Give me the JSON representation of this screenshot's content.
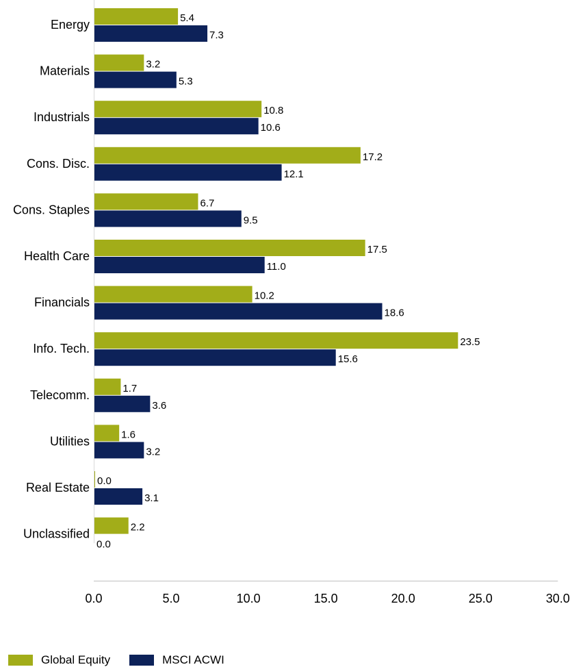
{
  "chart_data": {
    "type": "bar",
    "orientation": "horizontal",
    "categories": [
      "Energy",
      "Materials",
      "Industrials",
      "Cons. Disc.",
      "Cons. Staples",
      "Health Care",
      "Financials",
      "Info. Tech.",
      "Telecomm.",
      "Utilities",
      "Real Estate",
      "Unclassified"
    ],
    "series": [
      {
        "name": "Global Equity",
        "color": "#A2AD19",
        "values": [
          5.4,
          3.2,
          10.8,
          17.2,
          6.7,
          17.5,
          10.2,
          23.5,
          1.7,
          1.6,
          0.0,
          2.2
        ],
        "labels": [
          "5.4",
          "3.2",
          "10.8",
          "17.2",
          "6.7",
          "17.5",
          "10.2",
          "23.5",
          "1.7",
          "1.6",
          "0.0",
          "2.2"
        ]
      },
      {
        "name": "MSCI ACWI",
        "color": "#0D2259",
        "values": [
          7.3,
          5.3,
          10.6,
          12.1,
          9.5,
          11.0,
          18.6,
          15.6,
          3.6,
          3.2,
          3.1,
          0.0
        ],
        "labels": [
          "7.3",
          "5.3",
          "10.6",
          "12.1",
          "9.5",
          "11.0",
          "18.6",
          "15.6",
          "3.6",
          "3.2",
          "3.1",
          "0.0"
        ]
      }
    ],
    "xlim": [
      0,
      30
    ],
    "xticks": [
      0,
      5,
      10,
      15,
      20,
      25,
      30
    ],
    "xtick_labels": [
      "0.0",
      "5.0",
      "10.0",
      "15.0",
      "20.0",
      "25.0",
      "30.0"
    ],
    "grid": false,
    "legend_position": "bottom-left"
  }
}
